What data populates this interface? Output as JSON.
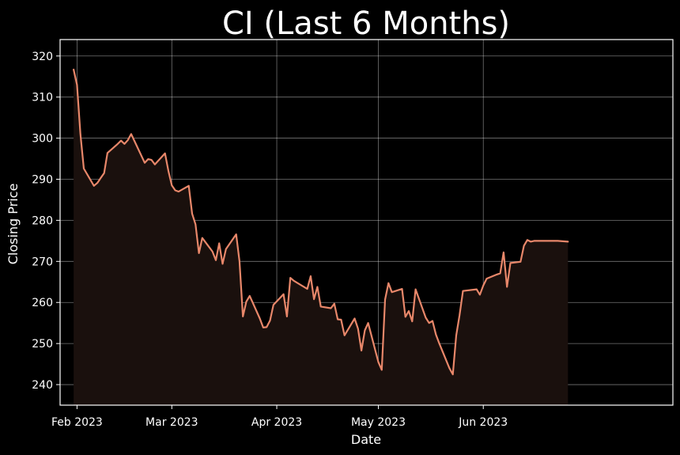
{
  "chart_data": {
    "type": "area",
    "title": "CI (Last 6 Months)",
    "xlabel": "Date",
    "ylabel": "Closing Price",
    "ylim": [
      235,
      324
    ],
    "xlim": [
      "2023-01-27",
      "2023-07-27"
    ],
    "grid": true,
    "line_color": "#E8876A",
    "fill_color": "#1A100D",
    "background": "#000000",
    "x_ticks": [
      {
        "date": "2023-02-01",
        "label": "Feb 2023"
      },
      {
        "date": "2023-03-01",
        "label": "Mar 2023"
      },
      {
        "date": "2023-04-01",
        "label": "Apr 2023"
      },
      {
        "date": "2023-05-01",
        "label": "May 2023"
      },
      {
        "date": "2023-06-01",
        "label": "Jun 2023"
      }
    ],
    "y_ticks": [
      240,
      250,
      260,
      270,
      280,
      290,
      300,
      310,
      320
    ],
    "series": [
      {
        "x": [
          "2023-01-31",
          "2023-02-01",
          "2023-02-02",
          "2023-02-03",
          "2023-02-06",
          "2023-02-07",
          "2023-02-08",
          "2023-02-09",
          "2023-02-10",
          "2023-02-13",
          "2023-02-14",
          "2023-02-15",
          "2023-02-16",
          "2023-02-17",
          "2023-02-21",
          "2023-02-22",
          "2023-02-23",
          "2023-02-24",
          "2023-02-27",
          "2023-02-28",
          "2023-03-01",
          "2023-03-02",
          "2023-03-03",
          "2023-03-06",
          "2023-03-07",
          "2023-03-08",
          "2023-03-09",
          "2023-03-10",
          "2023-03-13",
          "2023-03-14",
          "2023-03-15",
          "2023-03-16",
          "2023-03-17",
          "2023-03-20",
          "2023-03-21",
          "2023-03-22",
          "2023-03-23",
          "2023-03-24",
          "2023-03-27",
          "2023-03-28",
          "2023-03-29",
          "2023-03-30",
          "2023-03-31",
          "2023-04-03",
          "2023-04-04",
          "2023-04-05",
          "2023-04-06",
          "2023-04-10",
          "2023-04-11",
          "2023-04-12",
          "2023-04-13",
          "2023-04-14",
          "2023-04-17",
          "2023-04-18",
          "2023-04-19",
          "2023-04-20",
          "2023-04-21",
          "2023-04-24",
          "2023-04-25",
          "2023-04-26",
          "2023-04-27",
          "2023-04-28",
          "2023-05-01",
          "2023-05-02",
          "2023-05-03",
          "2023-05-04",
          "2023-05-05",
          "2023-05-08",
          "2023-05-09",
          "2023-05-10",
          "2023-05-11",
          "2023-05-12",
          "2023-05-15",
          "2023-05-16",
          "2023-05-17",
          "2023-05-18",
          "2023-05-19",
          "2023-05-22",
          "2023-05-23",
          "2023-05-24",
          "2023-05-25",
          "2023-05-26",
          "2023-05-30",
          "2023-05-31",
          "2023-06-01",
          "2023-06-02",
          "2023-06-05",
          "2023-06-06",
          "2023-06-07",
          "2023-06-08",
          "2023-06-09",
          "2023-06-12",
          "2023-06-13",
          "2023-06-14",
          "2023-06-15",
          "2023-06-16",
          "2023-06-20",
          "2023-06-21",
          "2023-06-22",
          "2023-06-23",
          "2023-06-26"
        ],
        "y": [
          316.7,
          313.0,
          301.0,
          292.6,
          288.4,
          289.1,
          290.3,
          291.5,
          296.4,
          298.6,
          299.4,
          298.6,
          299.5,
          301.0,
          294.0,
          294.9,
          294.7,
          293.6,
          296.3,
          292.0,
          288.5,
          287.3,
          287.0,
          288.4,
          281.6,
          279.0,
          272.0,
          275.7,
          272.4,
          270.3,
          274.4,
          269.4,
          273.0,
          276.6,
          270.0,
          256.6,
          260.2,
          261.6,
          256.1,
          253.9,
          254.0,
          255.6,
          259.4,
          262.0,
          256.6,
          266.0,
          265.3,
          263.3,
          266.4,
          260.8,
          263.8,
          259.0,
          258.6,
          259.7,
          255.9,
          255.8,
          252.0,
          256.1,
          253.6,
          248.3,
          253.2,
          255.0,
          245.5,
          243.6,
          260.7,
          264.7,
          262.5,
          263.3,
          256.5,
          257.9,
          255.4,
          263.2,
          256.3,
          255.0,
          255.5,
          252.2,
          250.0,
          244.0,
          242.5,
          252.0,
          256.9,
          262.8,
          263.2,
          261.9,
          264.1,
          265.8,
          266.8,
          267.1,
          272.2,
          263.8,
          269.6,
          269.9,
          273.8,
          275.2,
          274.8,
          275.0,
          275.0,
          275.0,
          275.0,
          275.0,
          274.8
        ]
      }
    ]
  }
}
